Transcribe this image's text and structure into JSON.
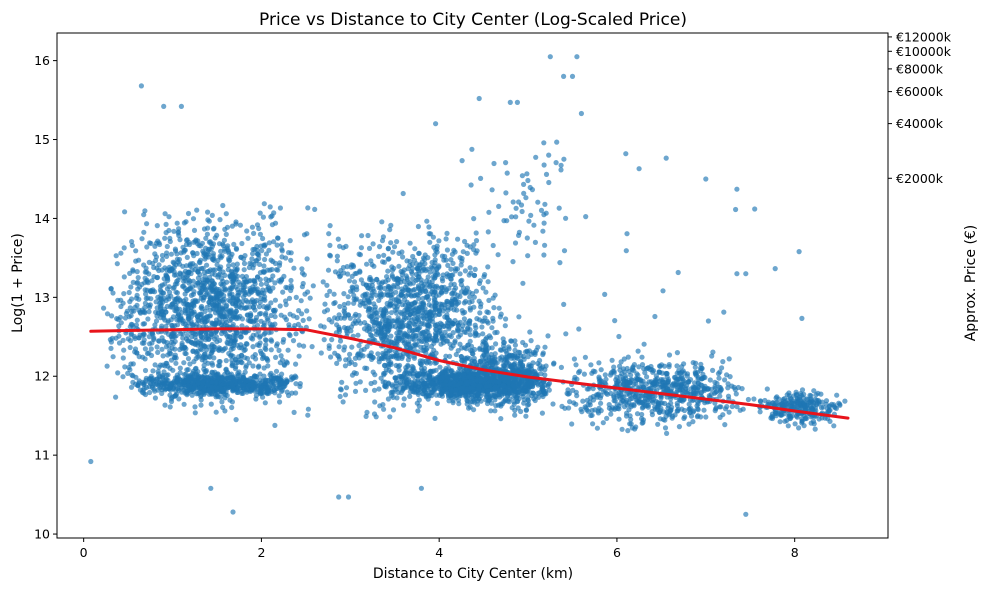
{
  "chart_data": {
    "type": "scatter",
    "title": "Price vs Distance to City Center (Log-Scaled Price)",
    "xlabel": "Distance to City Center (km)",
    "ylabel": "Log(1 + Price)",
    "y2label": "Approx. Price (€)",
    "xlim": [
      -0.3,
      9.05
    ],
    "ylim": [
      9.95,
      16.35
    ],
    "x_ticks": [
      0,
      2,
      4,
      6,
      8
    ],
    "y_ticks": [
      10,
      11,
      12,
      13,
      14,
      15,
      16
    ],
    "y2_ticks": [
      {
        "label": "€2000k",
        "value": 2000000
      },
      {
        "label": "€4000k",
        "value": 4000000
      },
      {
        "label": "€6000k",
        "value": 6000000
      },
      {
        "label": "€8000k",
        "value": 8000000
      },
      {
        "label": "€10000k",
        "value": 10000000
      },
      {
        "label": "€12000k",
        "value": 12000000
      }
    ],
    "grid": false,
    "point_color": "#1f77b4",
    "trend_color": "#e8141b",
    "clusters": [
      {
        "x": [
          0.2,
          2.6
        ],
        "y": [
          11.3,
          14.4
        ],
        "n": 1500
      },
      {
        "x": [
          2.6,
          4.8
        ],
        "y": [
          11.3,
          14.2
        ],
        "n": 1200
      },
      {
        "x": [
          0.5,
          2.5
        ],
        "y": [
          11.7,
          12.1
        ],
        "n": 650
      },
      {
        "x": [
          3.3,
          5.3
        ],
        "y": [
          11.6,
          12.2
        ],
        "n": 900
      },
      {
        "x": [
          4.2,
          5.3
        ],
        "y": [
          11.3,
          12.7
        ],
        "n": 450
      },
      {
        "x": [
          5.3,
          7.5
        ],
        "y": [
          11.2,
          12.4
        ],
        "n": 650
      },
      {
        "x": [
          7.5,
          8.6
        ],
        "y": [
          11.3,
          11.9
        ],
        "n": 250
      },
      {
        "x": [
          4.2,
          5.6
        ],
        "y": [
          13.0,
          15.5
        ],
        "n": 60
      },
      {
        "x": [
          0.1,
          8.5
        ],
        "y": [
          10.6,
          15.0
        ],
        "n": 110
      }
    ],
    "notable_points": [
      {
        "x": 0.08,
        "y": 10.92
      },
      {
        "x": 1.68,
        "y": 10.28
      },
      {
        "x": 2.87,
        "y": 10.47
      },
      {
        "x": 2.98,
        "y": 10.47
      },
      {
        "x": 3.8,
        "y": 10.58
      },
      {
        "x": 1.43,
        "y": 10.58
      },
      {
        "x": 7.45,
        "y": 10.25
      },
      {
        "x": 0.65,
        "y": 15.68
      },
      {
        "x": 0.9,
        "y": 15.42
      },
      {
        "x": 1.1,
        "y": 15.42
      },
      {
        "x": 5.25,
        "y": 16.05
      },
      {
        "x": 5.55,
        "y": 16.05
      },
      {
        "x": 5.5,
        "y": 15.8
      },
      {
        "x": 5.4,
        "y": 15.8
      },
      {
        "x": 4.45,
        "y": 15.52
      },
      {
        "x": 4.8,
        "y": 15.47
      },
      {
        "x": 4.88,
        "y": 15.47
      },
      {
        "x": 5.6,
        "y": 15.33
      },
      {
        "x": 3.96,
        "y": 15.2
      },
      {
        "x": 7.0,
        "y": 14.5
      },
      {
        "x": 7.35,
        "y": 14.37
      },
      {
        "x": 7.55,
        "y": 14.12
      },
      {
        "x": 8.05,
        "y": 13.58
      },
      {
        "x": 7.35,
        "y": 13.3
      },
      {
        "x": 7.45,
        "y": 13.3
      },
      {
        "x": 6.1,
        "y": 14.82
      },
      {
        "x": 6.25,
        "y": 14.63
      }
    ],
    "trend": {
      "x": [
        0.08,
        0.5,
        1.0,
        1.5,
        2.0,
        2.5,
        3.0,
        3.5,
        4.0,
        4.5,
        5.0,
        5.5,
        6.0,
        6.5,
        7.0,
        7.5,
        8.0,
        8.6
      ],
      "y": [
        12.57,
        12.58,
        12.59,
        12.6,
        12.6,
        12.59,
        12.48,
        12.36,
        12.2,
        12.08,
        11.99,
        11.92,
        11.85,
        11.78,
        11.71,
        11.64,
        11.56,
        11.47
      ]
    }
  }
}
